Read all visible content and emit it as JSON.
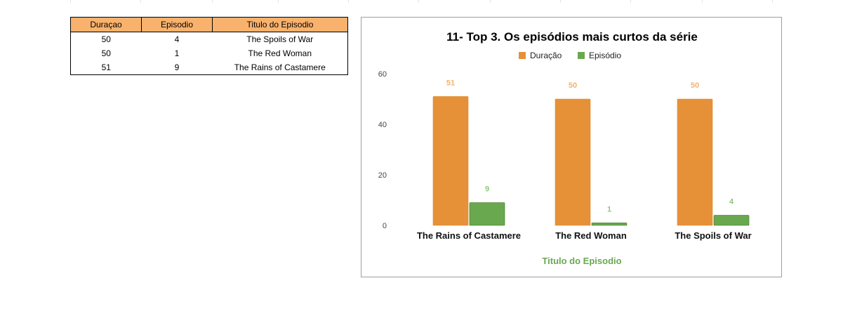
{
  "table": {
    "headers": [
      "Duraçao",
      "Episodio",
      "Titulo do Episodio"
    ],
    "rows": [
      [
        "50",
        "4",
        "The Spoils of War"
      ],
      [
        "50",
        "1",
        "The Red Woman"
      ],
      [
        "51",
        "9",
        "The Rains of Castamere"
      ]
    ]
  },
  "chart_data": {
    "type": "bar",
    "title": "11- Top 3. Os episódios mais curtos da série",
    "xlabel": "Titulo do Episodio",
    "ylabel": "",
    "categories": [
      "The Rains of Castamere",
      "The Red Woman",
      "The Spoils of War"
    ],
    "series": [
      {
        "name": "Duração",
        "values": [
          51,
          50,
          50
        ],
        "color": "#e69138"
      },
      {
        "name": "Episódio",
        "values": [
          9,
          1,
          4
        ],
        "color": "#6aa84f"
      }
    ],
    "ylim": [
      0,
      60
    ],
    "yticks": [
      0,
      20,
      40,
      60
    ],
    "legend": "top",
    "grid": false
  }
}
